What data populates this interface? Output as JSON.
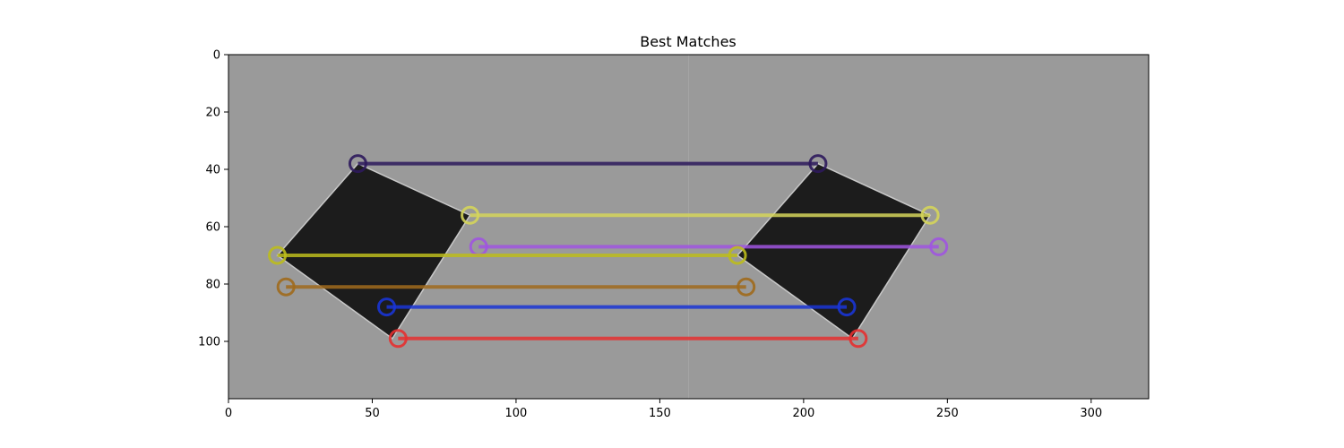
{
  "chart_data": {
    "type": "scatter",
    "title": "Best Matches",
    "xlabel": "",
    "ylabel": "",
    "xlim": [
      0,
      320
    ],
    "ylim": [
      120,
      0
    ],
    "x_ticks": [
      0,
      50,
      100,
      150,
      200,
      250,
      300
    ],
    "y_ticks": [
      0,
      20,
      40,
      60,
      80,
      100
    ],
    "image": {
      "width": 320,
      "height": 120,
      "split_x": 160,
      "background_color": "#9a9a9a",
      "squares": [
        {
          "corners": [
            [
              45,
              38
            ],
            [
              84,
              56
            ],
            [
              57,
              99
            ],
            [
              17,
              70
            ]
          ],
          "color": "#1c1c1c"
        },
        {
          "corners": [
            [
              205,
              38
            ],
            [
              244,
              56
            ],
            [
              217,
              99
            ],
            [
              177,
              70
            ]
          ],
          "color": "#1c1c1c"
        }
      ]
    },
    "matches": [
      {
        "p1": [
          45,
          38
        ],
        "p2": [
          205,
          38
        ],
        "color": "#2d1a5c"
      },
      {
        "p1": [
          84,
          56
        ],
        "p2": [
          244,
          56
        ],
        "color": "#d5d55a"
      },
      {
        "p1": [
          87,
          67
        ],
        "p2": [
          247,
          67
        ],
        "color": "#a055e0"
      },
      {
        "p1": [
          17,
          70
        ],
        "p2": [
          177,
          70
        ],
        "color": "#bcbc1c"
      },
      {
        "p1": [
          20,
          81
        ],
        "p2": [
          180,
          81
        ],
        "color": "#a06a1c"
      },
      {
        "p1": [
          55,
          88
        ],
        "p2": [
          215,
          88
        ],
        "color": "#1a35d5"
      },
      {
        "p1": [
          59,
          99
        ],
        "p2": [
          219,
          99
        ],
        "color": "#e53030"
      }
    ]
  }
}
